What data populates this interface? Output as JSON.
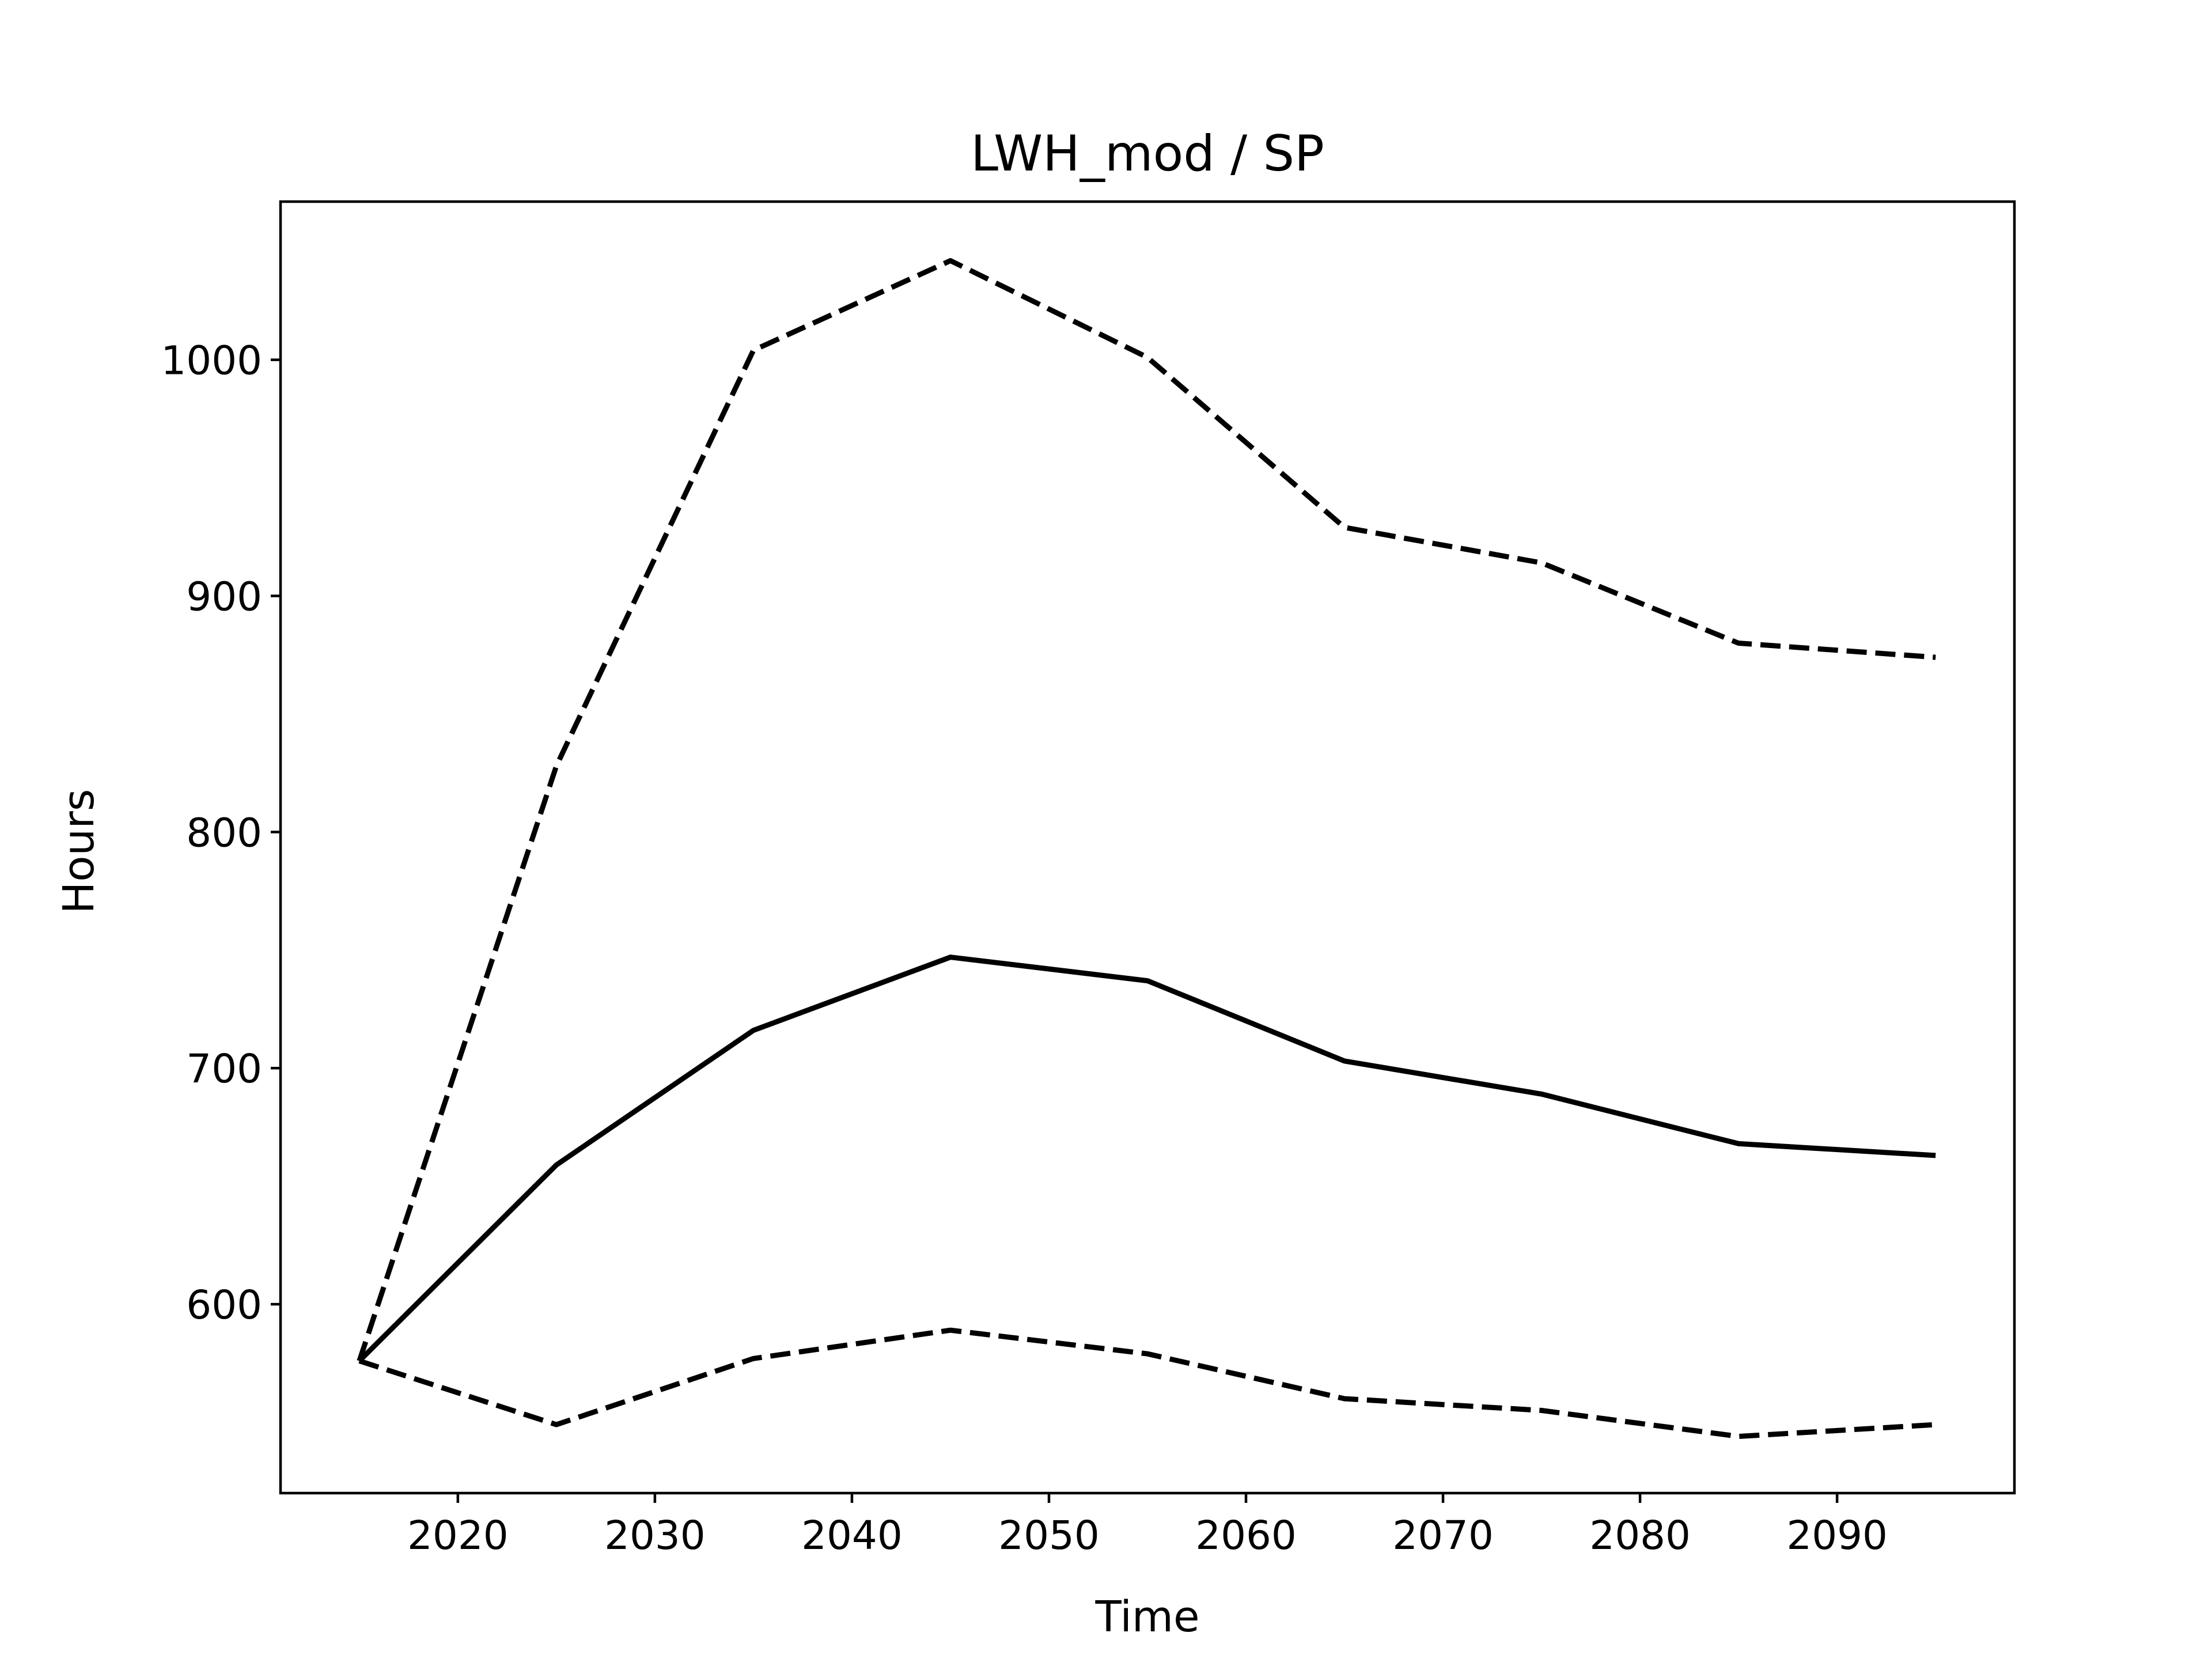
{
  "chart_data": {
    "type": "line",
    "title": "LWH_mod / SP",
    "xlabel": "Time",
    "ylabel": "Hours",
    "xlim": [
      2011,
      2099
    ],
    "ylim": [
      520,
      1067
    ],
    "x_ticks": [
      2020,
      2030,
      2040,
      2050,
      2060,
      2070,
      2080,
      2090
    ],
    "y_ticks": [
      600,
      700,
      800,
      900,
      1000
    ],
    "grid": false,
    "legend": "none",
    "x": [
      2015,
      2025,
      2035,
      2045,
      2055,
      2065,
      2075,
      2085,
      2095
    ],
    "series": [
      {
        "style": "solid",
        "color": "#000000",
        "values": [
          576,
          659,
          716,
          747,
          737,
          703,
          689,
          668,
          663
        ]
      },
      {
        "style": "dashed",
        "color": "#000000",
        "values": [
          576,
          828,
          1004,
          1042,
          1001,
          929,
          914,
          880,
          874
        ]
      },
      {
        "style": "dashed",
        "color": "#000000",
        "values": [
          576,
          549,
          577,
          589,
          579,
          560,
          555,
          544,
          549
        ]
      }
    ]
  }
}
